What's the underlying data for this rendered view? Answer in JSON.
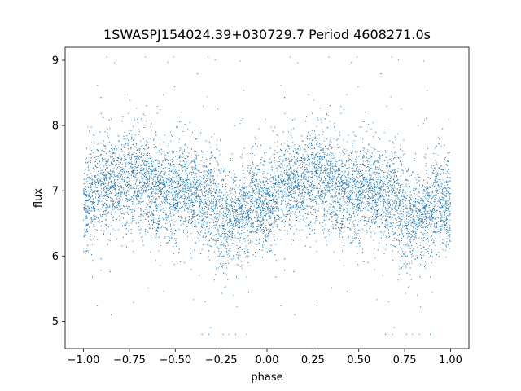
{
  "chart_data": {
    "type": "scatter",
    "title": "1SWASPJ154024.39+030729.7 Period 4608271.0s",
    "xlabel": "phase",
    "ylabel": "flux",
    "xlim": [
      -1.1,
      1.1
    ],
    "ylim": [
      4.58,
      9.2
    ],
    "xticks": [
      -1.0,
      -0.75,
      -0.5,
      -0.25,
      0.0,
      0.25,
      0.5,
      0.75,
      1.0
    ],
    "xtick_labels": [
      "−1.00",
      "−0.75",
      "−0.50",
      "−0.25",
      "0.00",
      "0.25",
      "0.50",
      "0.75",
      "1.00"
    ],
    "yticks": [
      5,
      6,
      7,
      8,
      9
    ],
    "ytick_labels": [
      "5",
      "6",
      "7",
      "8",
      "9"
    ],
    "grid": false,
    "marker_color": "#1f77b4",
    "phase_profile": {
      "description_points_phase": [
        0.0,
        0.05,
        0.12,
        0.2,
        0.3,
        0.38,
        0.45,
        0.5,
        0.55,
        0.62,
        0.7,
        0.78,
        0.8,
        0.85,
        0.9,
        0.95,
        1.0
      ],
      "median_flux": [
        6.75,
        6.95,
        7.1,
        7.15,
        7.2,
        7.05,
        6.95,
        7.0,
        7.05,
        6.9,
        6.85,
        6.55,
        6.6,
        6.6,
        6.8,
        6.8,
        6.75
      ],
      "spread_sigma": [
        0.35,
        0.35,
        0.35,
        0.35,
        0.4,
        0.35,
        0.35,
        0.4,
        0.35,
        0.35,
        0.4,
        0.4,
        0.35,
        0.35,
        0.35,
        0.35,
        0.35
      ]
    }
  }
}
